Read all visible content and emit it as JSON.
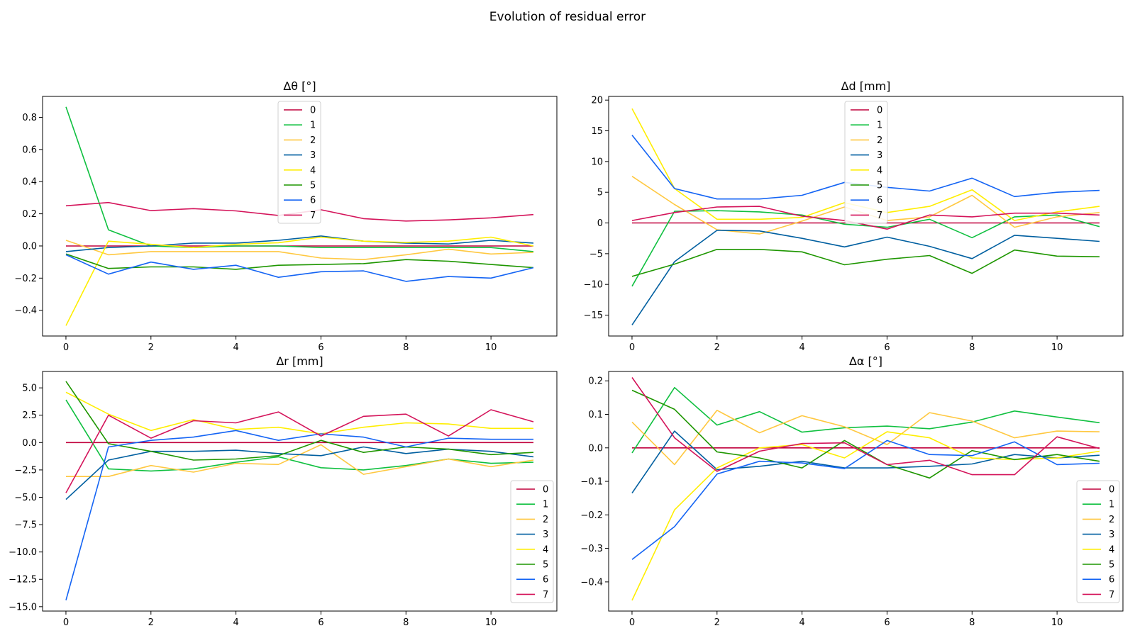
{
  "figure": {
    "title": "Evolution of residual error"
  },
  "colors": {
    "0": "#c0003c",
    "1": "#10c040",
    "2": "#ffc840",
    "3": "#005fa0",
    "4": "#ffee00",
    "5": "#1e9600",
    "6": "#1464f4",
    "7": "#d4145a"
  },
  "chart_data": [
    {
      "type": "line",
      "title": "Δθ [°]",
      "xlabel": "",
      "ylabel": "",
      "xlim": [
        -0.55,
        11.55
      ],
      "ylim": [
        -0.56,
        0.93
      ],
      "xticks": [
        0,
        2,
        4,
        6,
        8,
        10
      ],
      "yticks": [
        -0.4,
        -0.2,
        0.0,
        0.2,
        0.4,
        0.6,
        0.8
      ],
      "ytick_labels": [
        "−0.4",
        "−0.2",
        "0.0",
        "0.2",
        "0.4",
        "0.6",
        "0.8"
      ],
      "legend_position": "upper-center",
      "grid": false,
      "x": [
        0,
        1,
        2,
        3,
        4,
        5,
        6,
        7,
        8,
        9,
        10,
        11
      ],
      "series": [
        {
          "name": "0",
          "values": [
            0.0,
            0.0,
            0.0,
            0.0,
            0.0,
            0.0,
            0.0,
            0.0,
            0.0,
            0.0,
            0.0,
            0.0
          ]
        },
        {
          "name": "1",
          "values": [
            0.865,
            0.1,
            0.0,
            -0.01,
            0.0,
            0.0,
            -0.01,
            -0.01,
            -0.01,
            -0.01,
            -0.01,
            -0.035
          ]
        },
        {
          "name": "2",
          "values": [
            0.035,
            -0.055,
            -0.035,
            -0.035,
            -0.035,
            -0.035,
            -0.075,
            -0.085,
            -0.055,
            -0.02,
            -0.05,
            -0.04
          ]
        },
        {
          "name": "3",
          "values": [
            -0.035,
            -0.01,
            0.0,
            0.018,
            0.018,
            0.035,
            0.062,
            0.03,
            0.018,
            0.012,
            0.035,
            0.018
          ]
        },
        {
          "name": "4",
          "values": [
            -0.495,
            0.03,
            0.01,
            -0.01,
            0.01,
            0.02,
            0.055,
            0.03,
            0.022,
            0.03,
            0.055,
            0.0
          ]
        },
        {
          "name": "5",
          "values": [
            -0.05,
            -0.14,
            -0.13,
            -0.13,
            -0.145,
            -0.12,
            -0.115,
            -0.11,
            -0.085,
            -0.095,
            -0.115,
            -0.135
          ]
        },
        {
          "name": "6",
          "values": [
            -0.055,
            -0.175,
            -0.1,
            -0.145,
            -0.12,
            -0.195,
            -0.16,
            -0.155,
            -0.22,
            -0.19,
            -0.2,
            -0.135
          ]
        },
        {
          "name": "7",
          "values": [
            0.25,
            0.27,
            0.22,
            0.232,
            0.218,
            0.19,
            0.225,
            0.17,
            0.155,
            0.162,
            0.175,
            0.195
          ]
        }
      ]
    },
    {
      "type": "line",
      "title": "Δd [mm]",
      "xlabel": "",
      "ylabel": "",
      "xlim": [
        -0.55,
        11.55
      ],
      "ylim": [
        -18.4,
        20.6
      ],
      "xticks": [
        0,
        2,
        4,
        6,
        8,
        10
      ],
      "yticks": [
        -15,
        -10,
        -5,
        0,
        5,
        10,
        15,
        20
      ],
      "ytick_labels": [
        "−15",
        "−10",
        "−5",
        "0",
        "5",
        "10",
        "15",
        "20"
      ],
      "legend_position": "upper-center",
      "grid": false,
      "x": [
        0,
        1,
        2,
        3,
        4,
        5,
        6,
        7,
        8,
        9,
        10,
        11
      ],
      "series": [
        {
          "name": "0",
          "values": [
            0.0,
            0.0,
            0.0,
            0.0,
            0.0,
            0.0,
            0.0,
            0.0,
            0.0,
            0.0,
            0.0,
            0.0
          ]
        },
        {
          "name": "1",
          "values": [
            -10.3,
            1.9,
            2.0,
            1.8,
            1.3,
            -0.2,
            -0.7,
            0.6,
            -2.4,
            1.0,
            1.3,
            -0.6
          ]
        },
        {
          "name": "2",
          "values": [
            7.6,
            3.0,
            -1.1,
            -1.8,
            0.3,
            2.6,
            0.4,
            1.0,
            4.5,
            -0.7,
            1.0,
            1.7
          ]
        },
        {
          "name": "3",
          "values": [
            -16.6,
            -6.3,
            -1.2,
            -1.3,
            -2.5,
            -3.9,
            -2.3,
            -3.8,
            -5.8,
            -2.0,
            -2.5,
            -3.0
          ]
        },
        {
          "name": "4",
          "values": [
            18.6,
            5.6,
            0.6,
            0.6,
            0.9,
            3.3,
            1.7,
            2.7,
            5.4,
            0.4,
            1.8,
            2.7
          ]
        },
        {
          "name": "5",
          "values": [
            -8.7,
            -6.7,
            -4.3,
            -4.3,
            -4.7,
            -6.8,
            -5.9,
            -5.3,
            -8.2,
            -4.4,
            -5.4,
            -5.5
          ]
        },
        {
          "name": "6",
          "values": [
            14.3,
            5.6,
            3.9,
            3.9,
            4.5,
            6.6,
            5.8,
            5.2,
            7.3,
            4.3,
            5.0,
            5.3
          ]
        },
        {
          "name": "7",
          "values": [
            0.4,
            1.7,
            2.6,
            2.7,
            1.1,
            0.4,
            -1.0,
            1.3,
            1.0,
            1.6,
            1.6,
            1.3
          ]
        }
      ]
    },
    {
      "type": "line",
      "title": "Δr [mm]",
      "xlabel": "",
      "ylabel": "",
      "xlim": [
        -0.55,
        11.55
      ],
      "ylim": [
        -15.4,
        6.5
      ],
      "xticks": [
        0,
        2,
        4,
        6,
        8,
        10
      ],
      "yticks": [
        -15.0,
        -12.5,
        -10.0,
        -7.5,
        -5.0,
        -2.5,
        0.0,
        2.5,
        5.0
      ],
      "ytick_labels": [
        "−15.0",
        "−12.5",
        "−10.0",
        "−7.5",
        "−5.0",
        "−2.5",
        "0.0",
        "2.5",
        "5.0"
      ],
      "legend_position": "lower-right",
      "grid": false,
      "x": [
        0,
        1,
        2,
        3,
        4,
        5,
        6,
        7,
        8,
        9,
        10,
        11
      ],
      "series": [
        {
          "name": "0",
          "values": [
            0.0,
            0.0,
            0.0,
            0.0,
            0.0,
            0.0,
            0.0,
            0.0,
            0.0,
            0.0,
            0.0,
            0.0
          ]
        },
        {
          "name": "1",
          "values": [
            3.9,
            -2.4,
            -2.6,
            -2.4,
            -1.8,
            -1.3,
            -2.3,
            -2.5,
            -2.1,
            -1.5,
            -1.9,
            -1.8
          ]
        },
        {
          "name": "2",
          "values": [
            -3.1,
            -3.1,
            -2.1,
            -2.7,
            -1.9,
            -2.0,
            -0.2,
            -2.9,
            -2.2,
            -1.5,
            -2.2,
            -1.6
          ]
        },
        {
          "name": "3",
          "values": [
            -5.2,
            -1.6,
            -0.8,
            -0.8,
            -0.7,
            -1.0,
            -1.2,
            -0.4,
            -1.0,
            -0.6,
            -0.8,
            -1.3
          ]
        },
        {
          "name": "4",
          "values": [
            4.6,
            2.6,
            1.1,
            2.1,
            1.2,
            1.4,
            0.8,
            1.4,
            1.8,
            1.7,
            1.3,
            1.3
          ]
        },
        {
          "name": "5",
          "values": [
            5.6,
            -0.1,
            -0.8,
            -1.6,
            -1.5,
            -1.2,
            0.2,
            -0.9,
            -0.4,
            -0.6,
            -1.1,
            -0.9
          ]
        },
        {
          "name": "6",
          "values": [
            -14.4,
            -0.4,
            0.2,
            0.5,
            1.1,
            0.2,
            0.8,
            0.5,
            -0.4,
            0.4,
            0.3,
            0.3
          ]
        },
        {
          "name": "7",
          "values": [
            -4.6,
            2.5,
            0.4,
            2.0,
            1.8,
            2.8,
            0.6,
            2.4,
            2.6,
            0.6,
            3.0,
            1.9
          ]
        }
      ]
    },
    {
      "type": "line",
      "title": "Δα [°]",
      "xlabel": "",
      "ylabel": "",
      "xlim": [
        -0.55,
        11.55
      ],
      "ylim": [
        -0.487,
        0.228
      ],
      "xticks": [
        0,
        2,
        4,
        6,
        8,
        10
      ],
      "yticks": [
        -0.4,
        -0.3,
        -0.2,
        -0.1,
        0.0,
        0.1,
        0.2
      ],
      "ytick_labels": [
        "−0.4",
        "−0.3",
        "−0.2",
        "−0.1",
        "0.0",
        "0.1",
        "0.2"
      ],
      "legend_position": "lower-right",
      "grid": false,
      "x": [
        0,
        1,
        2,
        3,
        4,
        5,
        6,
        7,
        8,
        9,
        10,
        11
      ],
      "series": [
        {
          "name": "0",
          "values": [
            0.0,
            0.0,
            0.0,
            0.0,
            0.0,
            0.0,
            0.0,
            0.0,
            0.0,
            0.0,
            0.0,
            0.0
          ]
        },
        {
          "name": "1",
          "values": [
            -0.015,
            0.18,
            0.068,
            0.108,
            0.047,
            0.06,
            0.065,
            0.057,
            0.077,
            0.11,
            0.092,
            0.075
          ]
        },
        {
          "name": "2",
          "values": [
            0.077,
            -0.05,
            0.112,
            0.045,
            0.096,
            0.063,
            0.01,
            0.105,
            0.08,
            0.03,
            0.05,
            0.048
          ]
        },
        {
          "name": "3",
          "values": [
            -0.135,
            0.05,
            -0.065,
            -0.055,
            -0.04,
            -0.06,
            -0.06,
            -0.055,
            -0.048,
            -0.02,
            -0.03,
            -0.022
          ]
        },
        {
          "name": "4",
          "values": [
            -0.455,
            -0.185,
            -0.06,
            0.0,
            0.01,
            -0.03,
            0.048,
            0.03,
            -0.03,
            -0.035,
            -0.03,
            -0.01
          ]
        },
        {
          "name": "5",
          "values": [
            0.172,
            0.115,
            -0.012,
            -0.03,
            -0.06,
            0.022,
            -0.05,
            -0.09,
            -0.008,
            -0.035,
            -0.02,
            -0.04
          ]
        },
        {
          "name": "6",
          "values": [
            -0.333,
            -0.235,
            -0.078,
            -0.04,
            -0.045,
            -0.062,
            0.022,
            -0.02,
            -0.023,
            0.018,
            -0.05,
            -0.046
          ]
        },
        {
          "name": "7",
          "values": [
            0.21,
            0.03,
            -0.07,
            -0.01,
            0.013,
            0.015,
            -0.05,
            -0.037,
            -0.08,
            -0.08,
            0.033,
            -0.002
          ]
        }
      ]
    }
  ]
}
